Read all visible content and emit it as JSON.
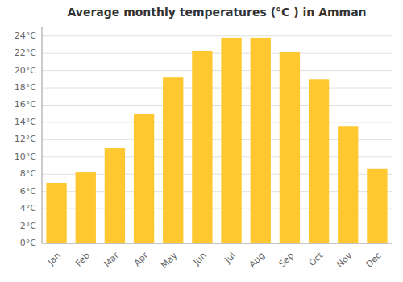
{
  "chart_data": {
    "type": "bar",
    "title": "Average monthly temperatures (°C ) in Amman",
    "categories": [
      "Jan",
      "Feb",
      "Mar",
      "Apr",
      "May",
      "Jun",
      "Jul",
      "Aug",
      "Sep",
      "Oct",
      "Nov",
      "Dec"
    ],
    "values": [
      7.0,
      8.2,
      11.0,
      15.0,
      19.2,
      22.3,
      23.8,
      23.8,
      22.2,
      19.0,
      13.5,
      8.6
    ],
    "color": "#FFC830",
    "ylim": [
      0,
      25
    ],
    "yticks": [
      {
        "value": 0,
        "label": "0°C"
      },
      {
        "value": 2,
        "label": "2°C"
      },
      {
        "value": 4,
        "label": "4°C"
      },
      {
        "value": 6,
        "label": "6°C"
      },
      {
        "value": 8,
        "label": "8°C"
      },
      {
        "value": 10,
        "label": "10°C"
      },
      {
        "value": 12,
        "label": "12°C"
      },
      {
        "value": 14,
        "label": "14°C"
      },
      {
        "value": 16,
        "label": "16°C"
      },
      {
        "value": 18,
        "label": "18°C"
      },
      {
        "value": 20,
        "label": "20°C"
      },
      {
        "value": 22,
        "label": "22°C"
      },
      {
        "value": 24,
        "label": "24°C"
      }
    ],
    "grid": true
  }
}
